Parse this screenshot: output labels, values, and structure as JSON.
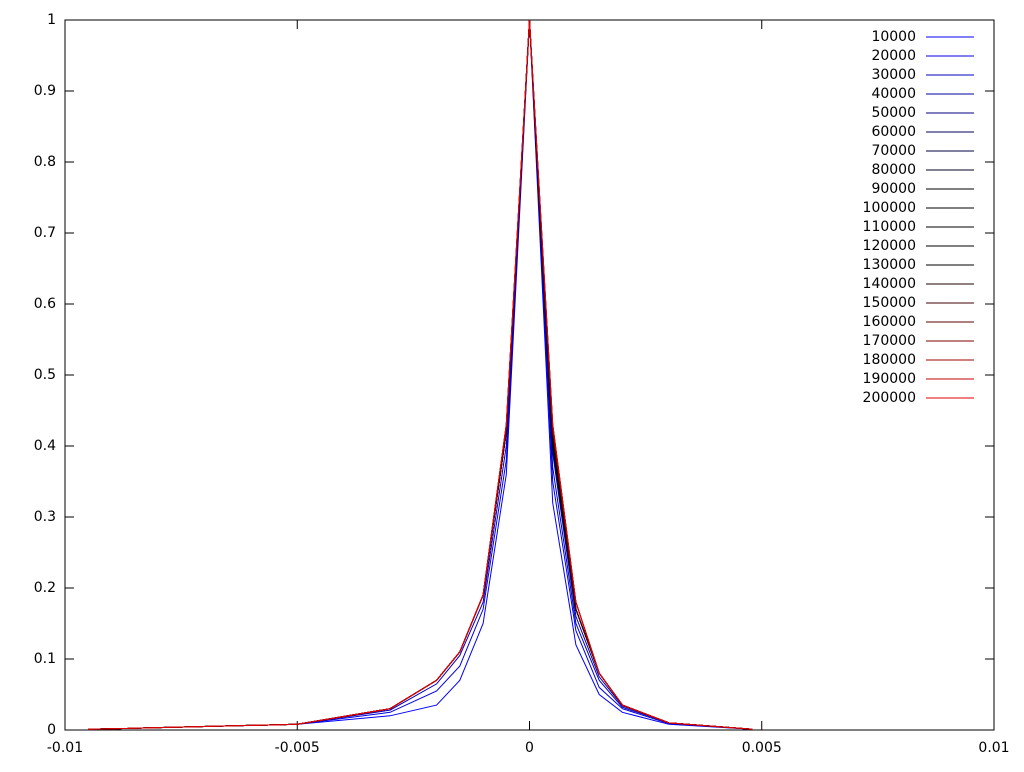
{
  "chart_data": {
    "type": "line",
    "x": [
      -0.0095,
      -0.005,
      -0.003,
      -0.002,
      -0.0015,
      -0.001,
      -0.0005,
      0,
      0.0005,
      0.001,
      0.0015,
      0.002,
      0.003,
      0.0048
    ],
    "series": [
      {
        "name": "10000",
        "color": "#0000ff",
        "values": [
          0.001,
          0.008,
          0.02,
          0.035,
          0.07,
          0.15,
          0.36,
          1,
          0.32,
          0.12,
          0.05,
          0.025,
          0.008,
          0.001
        ]
      },
      {
        "name": "20000",
        "color": "#0000e0",
        "values": [
          0.001,
          0.008,
          0.025,
          0.055,
          0.09,
          0.17,
          0.38,
          1,
          0.35,
          0.14,
          0.06,
          0.03,
          0.009,
          0.001
        ]
      },
      {
        "name": "30000",
        "color": "#0000c0",
        "values": [
          0.001,
          0.008,
          0.028,
          0.065,
          0.105,
          0.18,
          0.4,
          1,
          0.37,
          0.15,
          0.07,
          0.032,
          0.01,
          0.001
        ]
      },
      {
        "name": "40000",
        "color": "#0000a0",
        "values": [
          0.001,
          0.008,
          0.03,
          0.07,
          0.11,
          0.19,
          0.42,
          1,
          0.39,
          0.16,
          0.075,
          0.034,
          0.01,
          0.001
        ]
      },
      {
        "name": "50000",
        "color": "#000080",
        "values": [
          0.001,
          0.008,
          0.03,
          0.07,
          0.11,
          0.19,
          0.42,
          1,
          0.4,
          0.17,
          0.08,
          0.035,
          0.01,
          0.001
        ]
      },
      {
        "name": "60000",
        "color": "#000060",
        "values": [
          0.001,
          0.008,
          0.03,
          0.07,
          0.11,
          0.19,
          0.42,
          1,
          0.4,
          0.17,
          0.08,
          0.035,
          0.01,
          0.001
        ]
      },
      {
        "name": "70000",
        "color": "#000040",
        "values": [
          0.001,
          0.008,
          0.03,
          0.07,
          0.11,
          0.19,
          0.42,
          1,
          0.4,
          0.17,
          0.08,
          0.035,
          0.01,
          0.001
        ]
      },
      {
        "name": "80000",
        "color": "#000020",
        "values": [
          0.001,
          0.008,
          0.03,
          0.07,
          0.11,
          0.19,
          0.42,
          1,
          0.4,
          0.17,
          0.08,
          0.035,
          0.01,
          0.001
        ]
      },
      {
        "name": "90000",
        "color": "#000000",
        "values": [
          0.001,
          0.008,
          0.03,
          0.07,
          0.11,
          0.19,
          0.42,
          1,
          0.41,
          0.17,
          0.08,
          0.035,
          0.01,
          0.001
        ]
      },
      {
        "name": "100000",
        "color": "#000000",
        "values": [
          0.001,
          0.008,
          0.03,
          0.07,
          0.11,
          0.19,
          0.42,
          1,
          0.41,
          0.17,
          0.08,
          0.035,
          0.01,
          0.001
        ]
      },
      {
        "name": "110000",
        "color": "#000000",
        "values": [
          0.001,
          0.008,
          0.03,
          0.07,
          0.11,
          0.19,
          0.42,
          1,
          0.41,
          0.17,
          0.08,
          0.035,
          0.01,
          0.001
        ]
      },
      {
        "name": "120000",
        "color": "#000000",
        "values": [
          0.001,
          0.008,
          0.03,
          0.07,
          0.11,
          0.19,
          0.42,
          1,
          0.41,
          0.17,
          0.08,
          0.035,
          0.01,
          0.001
        ]
      },
      {
        "name": "130000",
        "color": "#000000",
        "values": [
          0.001,
          0.008,
          0.03,
          0.07,
          0.11,
          0.19,
          0.42,
          1,
          0.41,
          0.17,
          0.08,
          0.035,
          0.01,
          0.001
        ]
      },
      {
        "name": "140000",
        "color": "#200000",
        "values": [
          0.001,
          0.008,
          0.03,
          0.07,
          0.11,
          0.19,
          0.42,
          1,
          0.42,
          0.17,
          0.08,
          0.035,
          0.01,
          0.001
        ]
      },
      {
        "name": "150000",
        "color": "#400000",
        "values": [
          0.001,
          0.008,
          0.03,
          0.07,
          0.11,
          0.19,
          0.42,
          1,
          0.42,
          0.17,
          0.08,
          0.035,
          0.01,
          0.001
        ]
      },
      {
        "name": "160000",
        "color": "#600000",
        "values": [
          0.001,
          0.008,
          0.03,
          0.07,
          0.11,
          0.19,
          0.43,
          1,
          0.42,
          0.18,
          0.08,
          0.035,
          0.01,
          0.001
        ]
      },
      {
        "name": "170000",
        "color": "#800000",
        "values": [
          0.001,
          0.008,
          0.03,
          0.07,
          0.11,
          0.19,
          0.43,
          1,
          0.43,
          0.18,
          0.08,
          0.035,
          0.01,
          0.001
        ]
      },
      {
        "name": "180000",
        "color": "#a00000",
        "values": [
          0.001,
          0.008,
          0.03,
          0.07,
          0.11,
          0.19,
          0.43,
          1,
          0.43,
          0.18,
          0.08,
          0.035,
          0.01,
          0.001
        ]
      },
      {
        "name": "190000",
        "color": "#c00000",
        "values": [
          0.001,
          0.008,
          0.03,
          0.07,
          0.11,
          0.19,
          0.43,
          1,
          0.43,
          0.18,
          0.08,
          0.035,
          0.01,
          0.001
        ]
      },
      {
        "name": "200000",
        "color": "#e00000",
        "values": [
          0.001,
          0.008,
          0.03,
          0.07,
          0.11,
          0.19,
          0.43,
          1,
          0.43,
          0.18,
          0.08,
          0.035,
          0.01,
          0.001
        ]
      }
    ],
    "xlim": [
      -0.01,
      0.01
    ],
    "xticks": [
      -0.01,
      -0.005,
      0,
      0.005,
      0.01
    ],
    "ylim": [
      0,
      1
    ],
    "yticks": [
      0,
      0.1,
      0.2,
      0.3,
      0.4,
      0.5,
      0.6,
      0.7,
      0.8,
      0.9,
      1
    ],
    "legend": "top-right"
  }
}
